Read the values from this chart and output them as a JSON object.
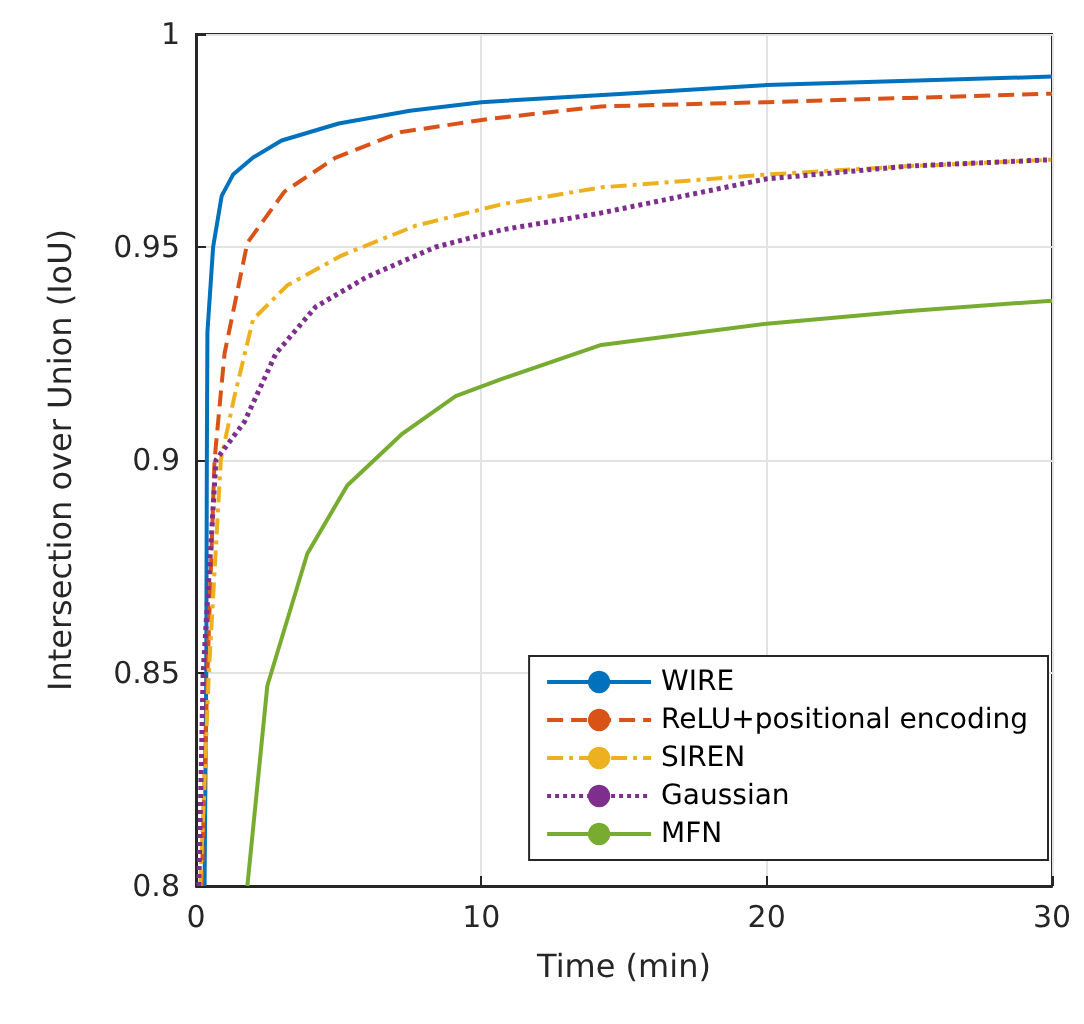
{
  "chart_data": {
    "type": "line",
    "xlabel": "Time (min)",
    "ylabel": "Intersection over Union (IoU)",
    "xlim": [
      0,
      30
    ],
    "xticks": [
      0,
      10,
      20,
      30
    ],
    "ylim": [
      0.8,
      1
    ],
    "yticks": [
      0.8,
      0.85,
      0.9,
      0.95,
      1
    ],
    "grid": true,
    "legend": "bottom right",
    "marker": "none",
    "series": [
      {
        "name": "WIRE",
        "color": "#0072bd",
        "line_style": "solid",
        "x": [
          0.3,
          0.36,
          0.38,
          0.4,
          0.6,
          0.9,
          1.3,
          2,
          3,
          5,
          7.5,
          10,
          15,
          20,
          25,
          30
        ],
        "values": [
          0.8,
          0.85,
          0.9,
          0.93,
          0.95,
          0.962,
          0.967,
          0.971,
          0.975,
          0.979,
          0.982,
          0.984,
          0.986,
          0.988,
          0.989,
          0.99
        ]
      },
      {
        "name": "ReLU+positional encoding",
        "color": "#d95319",
        "line_style": "dashed",
        "x": [
          0.2,
          0.4,
          0.65,
          1,
          1.8,
          3.1,
          4.9,
          7.2,
          10.2,
          14.2,
          20,
          25,
          30
        ],
        "values": [
          0.8,
          0.85,
          0.9,
          0.925,
          0.951,
          0.963,
          0.971,
          0.977,
          0.98,
          0.983,
          0.984,
          0.985,
          0.986
        ]
      },
      {
        "name": "SIREN",
        "color": "#edb120",
        "line_style": "dashdot",
        "x": [
          0.15,
          0.45,
          0.87,
          1.35,
          2,
          3.2,
          5.1,
          7.7,
          10.7,
          14.2,
          20,
          25,
          30
        ],
        "values": [
          0.8,
          0.85,
          0.9,
          0.915,
          0.933,
          0.941,
          0.948,
          0.955,
          0.96,
          0.964,
          0.967,
          0.969,
          0.9705
        ]
      },
      {
        "name": "Gaussian",
        "color": "#7e2f8e",
        "line_style": "dotted",
        "x": [
          0.1,
          0.25,
          0.7,
          1.7,
          2.8,
          4.2,
          6,
          8.4,
          10.7,
          14.2,
          20,
          25,
          30
        ],
        "values": [
          0.8,
          0.85,
          0.9,
          0.909,
          0.925,
          0.936,
          0.943,
          0.95,
          0.954,
          0.958,
          0.966,
          0.969,
          0.9705
        ]
      },
      {
        "name": "MFN",
        "color": "#77ac30",
        "line_style": "solid",
        "x": [
          1.8,
          2.5,
          3.9,
          5.3,
          7.2,
          9.1,
          10.7,
          14.2,
          20,
          25,
          30
        ],
        "values": [
          0.8,
          0.847,
          0.878,
          0.894,
          0.906,
          0.915,
          0.919,
          0.927,
          0.932,
          0.935,
          0.9374
        ]
      }
    ]
  }
}
